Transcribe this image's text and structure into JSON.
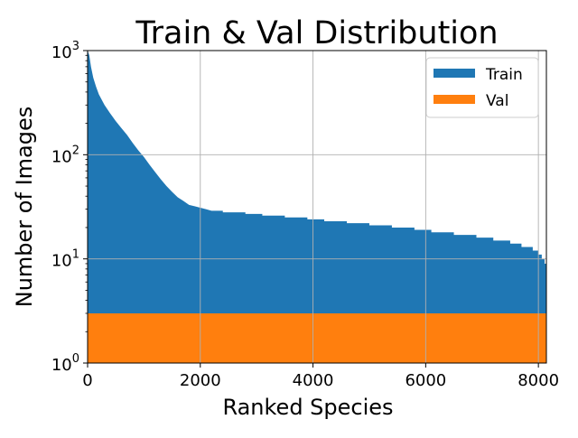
{
  "chart_data": {
    "type": "area",
    "title": "Train & Val Distribution",
    "xlabel": "Ranked Species",
    "ylabel": "Number of Images",
    "xlim": [
      0,
      8142
    ],
    "ylim": [
      1,
      1000
    ],
    "yscale": "log",
    "x_ticks": [
      {
        "value": 0,
        "label": "0"
      },
      {
        "value": 2000,
        "label": "2000"
      },
      {
        "value": 4000,
        "label": "4000"
      },
      {
        "value": 6000,
        "label": "6000"
      },
      {
        "value": 8000,
        "label": "8000"
      }
    ],
    "y_ticks": [
      {
        "value": 1,
        "base": "10",
        "exp": "0"
      },
      {
        "value": 10,
        "base": "10",
        "exp": "1"
      },
      {
        "value": 100,
        "base": "10",
        "exp": "2"
      },
      {
        "value": 1000,
        "base": "10",
        "exp": "3"
      }
    ],
    "grid": true,
    "legend_position": "top-right",
    "series": [
      {
        "name": "Train",
        "color": "#1f77b4",
        "points": [
          [
            0,
            1000
          ],
          [
            30,
            900
          ],
          [
            60,
            700
          ],
          [
            100,
            550
          ],
          [
            150,
            450
          ],
          [
            200,
            380
          ],
          [
            300,
            300
          ],
          [
            400,
            250
          ],
          [
            500,
            210
          ],
          [
            600,
            180
          ],
          [
            700,
            155
          ],
          [
            800,
            130
          ],
          [
            900,
            110
          ],
          [
            1000,
            95
          ],
          [
            1100,
            80
          ],
          [
            1200,
            68
          ],
          [
            1300,
            58
          ],
          [
            1400,
            50
          ],
          [
            1500,
            44
          ],
          [
            1600,
            39
          ],
          [
            1700,
            36
          ],
          [
            1800,
            33
          ],
          [
            1900,
            32
          ],
          [
            2000,
            31
          ],
          [
            2100,
            30
          ],
          [
            2200,
            29
          ],
          [
            2400,
            29
          ],
          [
            2400,
            28
          ],
          [
            2800,
            28
          ],
          [
            2800,
            27
          ],
          [
            3100,
            27
          ],
          [
            3100,
            26
          ],
          [
            3500,
            26
          ],
          [
            3500,
            25
          ],
          [
            3900,
            25
          ],
          [
            3900,
            24
          ],
          [
            4200,
            24
          ],
          [
            4200,
            23
          ],
          [
            4600,
            23
          ],
          [
            4600,
            22
          ],
          [
            5000,
            22
          ],
          [
            5000,
            21
          ],
          [
            5400,
            21
          ],
          [
            5400,
            20
          ],
          [
            5800,
            20
          ],
          [
            5800,
            19
          ],
          [
            6100,
            19
          ],
          [
            6100,
            18
          ],
          [
            6500,
            18
          ],
          [
            6500,
            17
          ],
          [
            6900,
            17
          ],
          [
            6900,
            16
          ],
          [
            7200,
            16
          ],
          [
            7200,
            15
          ],
          [
            7500,
            15
          ],
          [
            7500,
            14
          ],
          [
            7700,
            14
          ],
          [
            7700,
            13
          ],
          [
            7900,
            13
          ],
          [
            7900,
            12
          ],
          [
            8000,
            12
          ],
          [
            8000,
            11
          ],
          [
            8060,
            11
          ],
          [
            8060,
            10
          ],
          [
            8110,
            10
          ],
          [
            8110,
            9
          ],
          [
            8142,
            9
          ],
          [
            8142,
            8
          ]
        ]
      },
      {
        "name": "Val",
        "color": "#ff7f0e",
        "points": [
          [
            0,
            3
          ],
          [
            8142,
            3
          ]
        ]
      }
    ]
  }
}
